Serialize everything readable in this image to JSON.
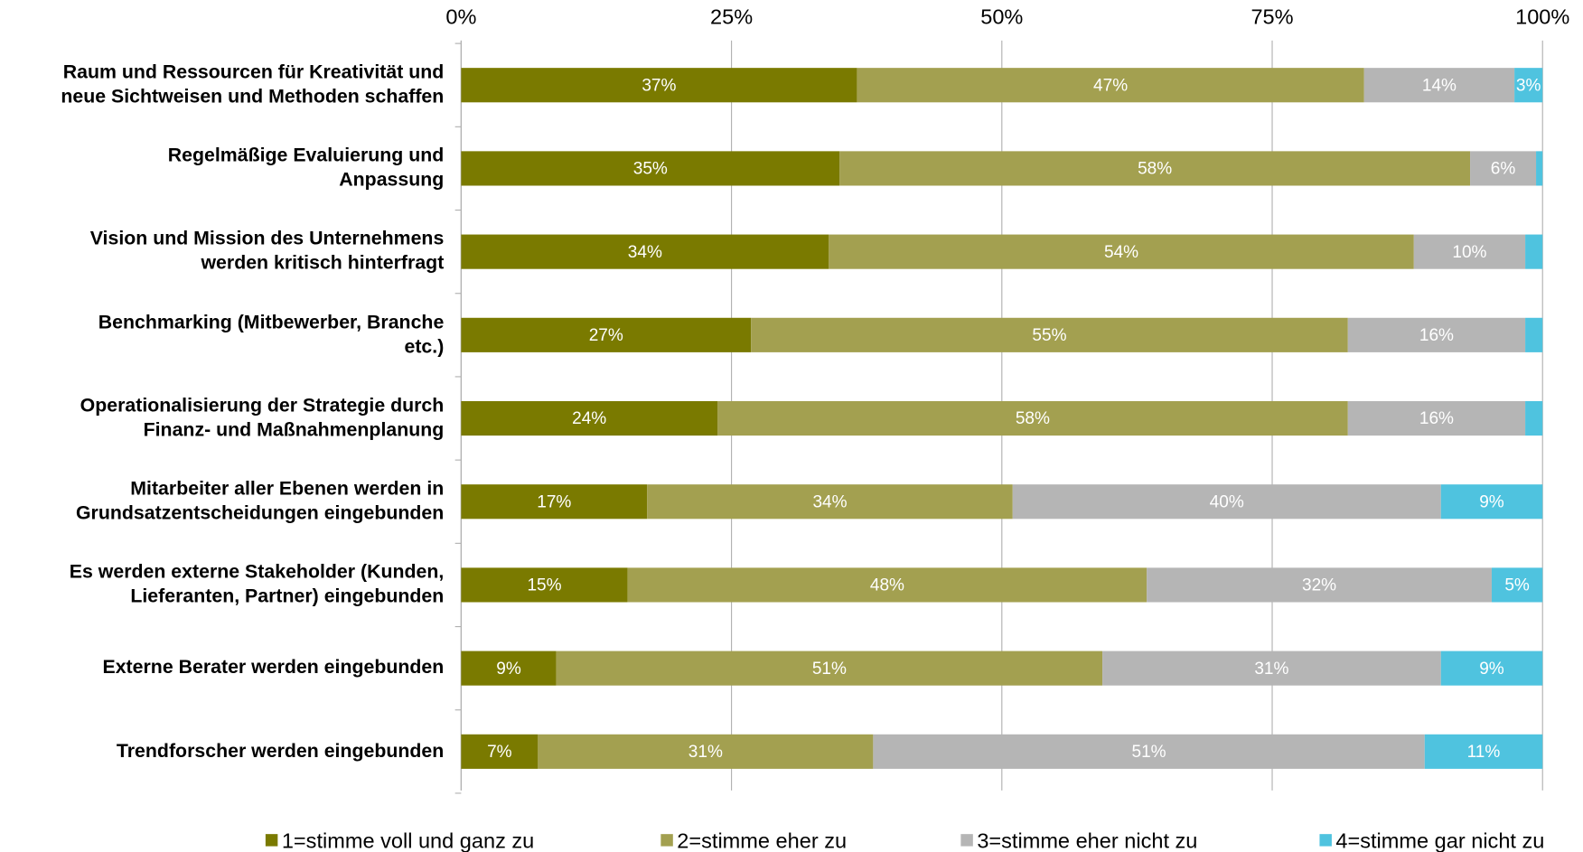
{
  "chart_data": {
    "type": "stacked_barh",
    "categories": [
      "Raum und Ressourcen für Kreativität und\nneue Sichtweisen und Methoden schaffen",
      "Regelmäßige Evaluierung und\nAnpassung",
      "Vision und Mission des Unternehmens\nwerden kritisch hinterfragt",
      "Benchmarking (Mitbewerber, Branche\netc.)",
      "Operationalisierung der Strategie durch\nFinanz- und Maßnahmenplanung",
      "Mitarbeiter aller Ebenen werden in\nGrundsatzentscheidungen eingebunden",
      "Es werden externe Stakeholder (Kunden,\nLieferanten, Partner) eingebunden",
      "Externe Berater werden eingebunden",
      "Trendforscher werden eingebunden"
    ],
    "series": [
      {
        "name": "1=stimme voll und ganz zu",
        "color": "#7a7a00",
        "values": [
          36.6,
          35.0,
          34.0,
          26.8,
          23.7,
          17.2,
          15.4,
          8.8,
          7.1
        ],
        "value_labels": [
          "37%",
          "35%",
          "34%",
          "27%",
          "24%",
          "17%",
          "15%",
          "9%",
          "7%"
        ]
      },
      {
        "name": "2=stimme eher zu",
        "color": "#a3a050",
        "values": [
          46.9,
          58.3,
          54.1,
          55.2,
          58.3,
          33.8,
          48.0,
          50.5,
          31.0
        ],
        "value_labels": [
          "47%",
          "58%",
          "54%",
          "55%",
          "58%",
          "34%",
          "48%",
          "51%",
          "31%"
        ]
      },
      {
        "name": "3=stimme eher nicht zu",
        "color": "#b5b5b5",
        "values": [
          13.9,
          6.1,
          10.3,
          16.4,
          16.4,
          39.6,
          31.9,
          31.3,
          51.0
        ],
        "value_labels": [
          "14%",
          "6%",
          "10%",
          "16%",
          "16%",
          "40%",
          "32%",
          "31%",
          "51%"
        ]
      },
      {
        "name": "4=stimme gar nicht zu",
        "color": "#4fc3df",
        "values": [
          2.6,
          0.6,
          1.6,
          1.6,
          1.6,
          9.4,
          4.7,
          9.4,
          10.9
        ],
        "value_labels": [
          "3%",
          null,
          null,
          null,
          null,
          "9%",
          "5%",
          "9%",
          "11%"
        ]
      }
    ],
    "xlim": [
      0,
      100
    ],
    "xticks": [
      {
        "value": 0,
        "label": "0%"
      },
      {
        "value": 25,
        "label": "25%"
      },
      {
        "value": 50,
        "label": "50%"
      },
      {
        "value": 75,
        "label": "75%"
      },
      {
        "value": 100,
        "label": "100%"
      }
    ],
    "grid": true,
    "legend": "bottom"
  }
}
